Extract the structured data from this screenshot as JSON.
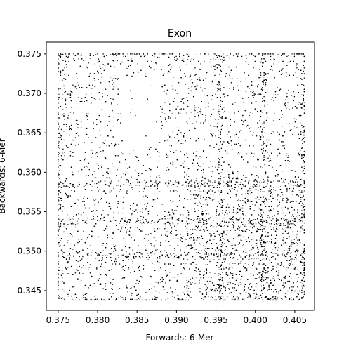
{
  "chart_data": {
    "type": "scatter",
    "title": "Exon",
    "xlabel": "Forwards: 6-Mer",
    "ylabel": "Backwards: 6-Mer",
    "xlim": [
      0.3735,
      0.4075
    ],
    "ylim": [
      0.3425,
      0.3765
    ],
    "xticks": [
      "0.375",
      "0.380",
      "0.385",
      "0.390",
      "0.395",
      "0.400",
      "0.405"
    ],
    "yticks": [
      "0.345",
      "0.350",
      "0.355",
      "0.360",
      "0.365",
      "0.370",
      "0.375"
    ],
    "grid": false,
    "legend": "none",
    "marker_color": "#000000",
    "x_range": [
      0.375,
      0.4062
    ],
    "y_range": [
      0.3438,
      0.375
    ],
    "dense_rows_y": [
      0.375,
      0.3438,
      0.3495,
      0.3538,
      0.3585
    ],
    "dense_cols_x": [
      0.375,
      0.4062,
      0.3955,
      0.401
    ],
    "sparse_region": {
      "x": [
        0.383,
        0.388
      ],
      "y": [
        0.363,
        0.372
      ]
    },
    "approx_point_count": 6000
  }
}
